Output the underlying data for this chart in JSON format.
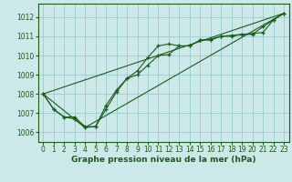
{
  "title": "Graphe pression niveau de la mer (hPa)",
  "bg_color": "#cce8e8",
  "grid_color": "#99cccc",
  "line_color": "#1a5c1a",
  "xlim": [
    -0.5,
    23.5
  ],
  "ylim": [
    1005.5,
    1012.7
  ],
  "yticks": [
    1006,
    1007,
    1008,
    1009,
    1010,
    1011,
    1012
  ],
  "xticks": [
    0,
    1,
    2,
    3,
    4,
    5,
    6,
    7,
    8,
    9,
    10,
    11,
    12,
    13,
    14,
    15,
    16,
    17,
    18,
    19,
    20,
    21,
    22,
    23
  ],
  "series1": [
    1008.0,
    1007.2,
    1006.8,
    1006.8,
    1006.3,
    1006.3,
    1007.2,
    1008.1,
    1008.8,
    1009.2,
    1009.9,
    1010.5,
    1010.6,
    1010.5,
    1010.5,
    1010.8,
    1010.8,
    1011.0,
    1011.0,
    1011.1,
    1011.1,
    1011.5,
    1011.85,
    1012.2
  ],
  "series2": [
    1008.0,
    1007.2,
    1006.8,
    1006.7,
    1006.25,
    1006.3,
    1007.4,
    1008.2,
    1008.8,
    1009.0,
    1009.5,
    1010.0,
    1010.05,
    1010.5,
    1010.5,
    1010.8,
    1010.85,
    1011.0,
    1011.05,
    1011.1,
    1011.15,
    1011.2,
    1011.85,
    1012.2
  ],
  "series3_x": [
    0,
    23
  ],
  "series3_y": [
    1008.0,
    1012.2
  ],
  "series4_x": [
    0,
    4,
    23
  ],
  "series4_y": [
    1008.0,
    1006.25,
    1012.2
  ],
  "tick_labelsize": 5.5,
  "xlabel_fontsize": 6.5
}
